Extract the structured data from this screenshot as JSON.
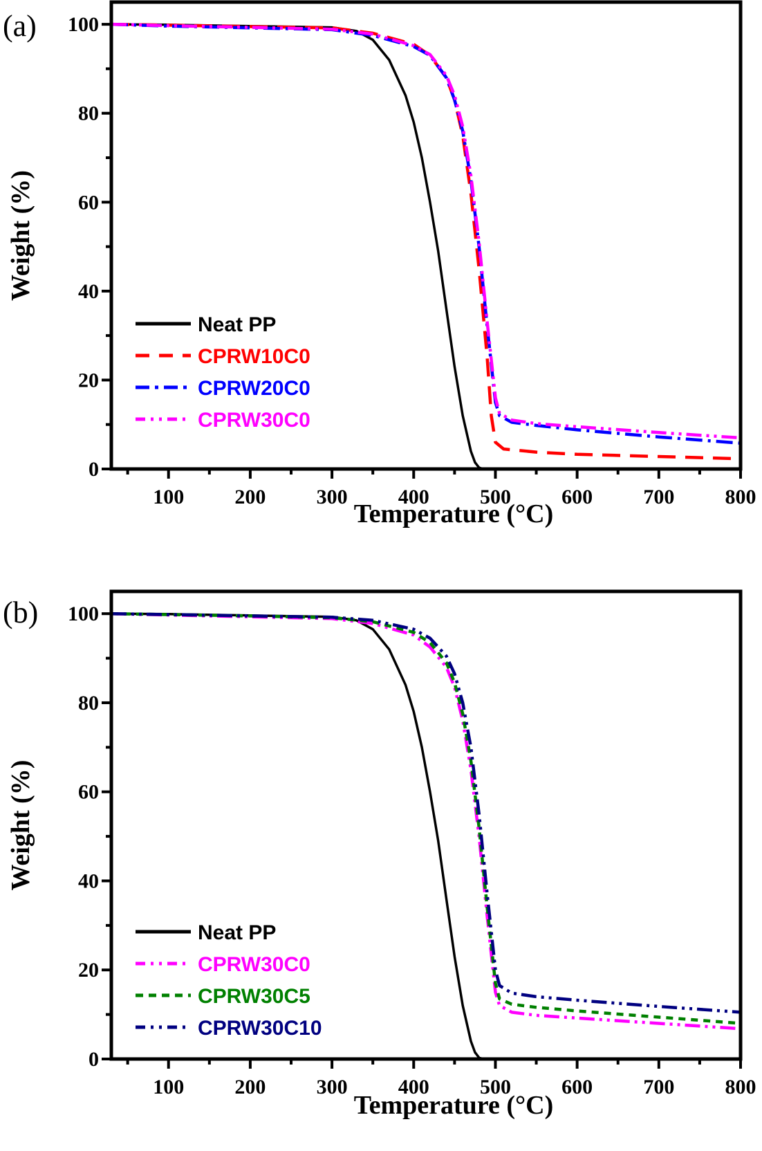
{
  "chart_data": [
    {
      "type": "line",
      "panel_label": "(a)",
      "title": "",
      "xlabel": "Temperature (°C)",
      "ylabel": "Weight (%)",
      "xlim": [
        30,
        800
      ],
      "ylim": [
        0,
        105
      ],
      "xticks": [
        100,
        200,
        300,
        400,
        500,
        600,
        700,
        800
      ],
      "yticks": [
        0,
        20,
        40,
        60,
        80,
        100
      ],
      "grid": false,
      "legend_position": "bottom-left",
      "series": [
        {
          "name": "Neat PP",
          "color": "#000000",
          "dash": "solid",
          "x": [
            30,
            100,
            200,
            300,
            330,
            350,
            370,
            390,
            400,
            410,
            420,
            430,
            440,
            450,
            460,
            470,
            475,
            480,
            485
          ],
          "y": [
            100,
            99.9,
            99.6,
            99.3,
            98.5,
            96.5,
            92,
            84,
            78,
            70,
            60,
            49,
            36,
            23,
            12,
            4,
            1.5,
            0.3,
            0
          ]
        },
        {
          "name": "CPRW10C0",
          "color": "#ff0000",
          "dash": "dash",
          "x": [
            30,
            100,
            200,
            300,
            350,
            400,
            420,
            440,
            450,
            460,
            470,
            480,
            490,
            495,
            500,
            510,
            550,
            600,
            700,
            800
          ],
          "y": [
            100,
            99.8,
            99.5,
            99.2,
            98,
            95.5,
            93,
            88,
            83,
            75,
            62,
            45,
            25,
            12,
            6,
            4.5,
            3.8,
            3.3,
            2.8,
            2.3
          ]
        },
        {
          "name": "CPRW20C0",
          "color": "#0000ff",
          "dash": "dashdot",
          "x": [
            30,
            100,
            200,
            300,
            350,
            400,
            420,
            440,
            450,
            460,
            470,
            480,
            490,
            500,
            505,
            520,
            550,
            600,
            700,
            800
          ],
          "y": [
            100,
            99.6,
            99.2,
            98.8,
            97.5,
            95,
            93,
            88,
            83,
            76,
            65,
            50,
            32,
            15,
            12,
            10.5,
            9.8,
            8.8,
            7.2,
            5.8
          ]
        },
        {
          "name": "CPRW30C0",
          "color": "#ff00ff",
          "dash": "dashdotdot",
          "x": [
            30,
            100,
            200,
            300,
            350,
            400,
            420,
            440,
            450,
            460,
            470,
            480,
            490,
            500,
            505,
            520,
            550,
            600,
            700,
            800
          ],
          "y": [
            100,
            99.7,
            99.3,
            98.9,
            97.8,
            95.2,
            93.2,
            88.5,
            84,
            77,
            66,
            51,
            33,
            16,
            12.5,
            11,
            10.2,
            9.5,
            8.2,
            7
          ]
        }
      ]
    },
    {
      "type": "line",
      "panel_label": "(b)",
      "title": "",
      "xlabel": "Temperature (°C)",
      "ylabel": "Weight (%)",
      "xlim": [
        30,
        800
      ],
      "ylim": [
        0,
        105
      ],
      "xticks": [
        100,
        200,
        300,
        400,
        500,
        600,
        700,
        800
      ],
      "yticks": [
        0,
        20,
        40,
        60,
        80,
        100
      ],
      "grid": false,
      "legend_position": "bottom-left",
      "series": [
        {
          "name": "Neat PP",
          "color": "#000000",
          "dash": "solid",
          "x": [
            30,
            100,
            200,
            300,
            330,
            350,
            370,
            390,
            400,
            410,
            420,
            430,
            440,
            450,
            460,
            470,
            475,
            480,
            485
          ],
          "y": [
            100,
            99.9,
            99.6,
            99.3,
            98.5,
            96.5,
            92,
            84,
            78,
            70,
            60,
            49,
            36,
            23,
            12,
            4,
            1.5,
            0.3,
            0
          ]
        },
        {
          "name": "CPRW30C0",
          "color": "#ff00ff",
          "dash": "dashdotdot",
          "x": [
            30,
            100,
            200,
            300,
            350,
            400,
            420,
            440,
            450,
            460,
            470,
            480,
            490,
            500,
            505,
            520,
            550,
            600,
            700,
            800
          ],
          "y": [
            100,
            99.7,
            99.3,
            98.9,
            97.8,
            95.2,
            92.5,
            88,
            83.5,
            76,
            65,
            50,
            32,
            15,
            12,
            10.5,
            9.8,
            9.2,
            8,
            6.8
          ]
        },
        {
          "name": "CPRW30C5",
          "color": "#008000",
          "dash": "shortdash",
          "x": [
            30,
            100,
            200,
            300,
            350,
            400,
            420,
            440,
            450,
            460,
            470,
            480,
            490,
            500,
            505,
            520,
            550,
            600,
            700,
            800
          ],
          "y": [
            100,
            99.8,
            99.5,
            99.1,
            98.2,
            95.8,
            93.5,
            89,
            84.5,
            77.5,
            67,
            52,
            34,
            17,
            13.5,
            12.3,
            11.6,
            10.8,
            9.4,
            8
          ]
        },
        {
          "name": "CPRW30C10",
          "color": "#000080",
          "dash": "dashdotdot",
          "x": [
            30,
            100,
            200,
            300,
            350,
            400,
            420,
            440,
            450,
            460,
            470,
            480,
            490,
            500,
            505,
            520,
            550,
            600,
            700,
            800
          ],
          "y": [
            100,
            99.8,
            99.5,
            99.2,
            98.5,
            96.5,
            94.5,
            90.5,
            86.5,
            80,
            70,
            55,
            37,
            20,
            16.5,
            14.8,
            14,
            13.2,
            11.8,
            10.5
          ]
        }
      ]
    }
  ]
}
